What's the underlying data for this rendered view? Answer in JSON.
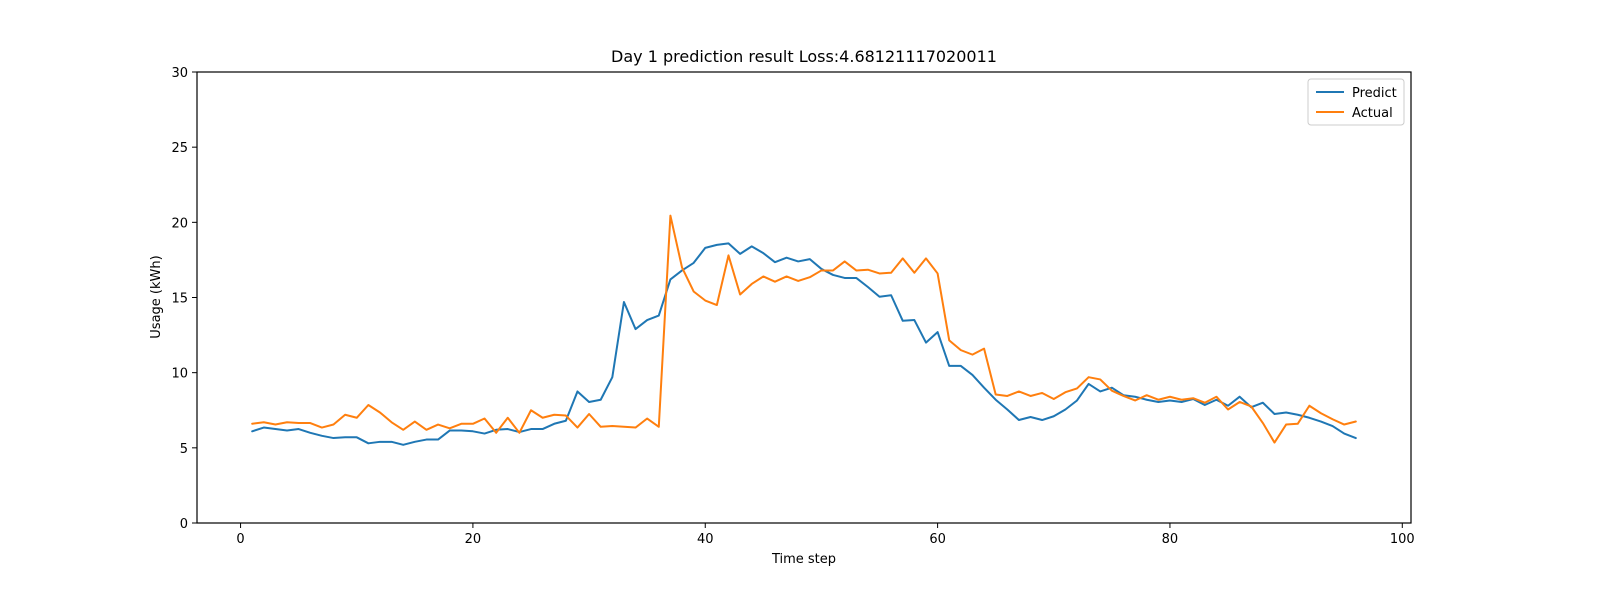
{
  "chart_data": {
    "type": "line",
    "title": "Day 1 prediction result Loss:4.68121117020011",
    "xlabel": "Time step",
    "ylabel": "Usage (kWh)",
    "xlim": [
      -3.75,
      100.75
    ],
    "ylim": [
      0,
      30
    ],
    "xticks": [
      "0",
      "20",
      "40",
      "60",
      "80",
      "100"
    ],
    "yticks": [
      "0",
      "5",
      "10",
      "15",
      "20",
      "25",
      "30"
    ],
    "grid": false,
    "legend_position": "top-right",
    "x": [
      1,
      2,
      3,
      4,
      5,
      6,
      7,
      8,
      9,
      10,
      11,
      12,
      13,
      14,
      15,
      16,
      17,
      18,
      19,
      20,
      21,
      22,
      23,
      24,
      25,
      26,
      27,
      28,
      29,
      30,
      31,
      32,
      33,
      34,
      35,
      36,
      37,
      38,
      39,
      40,
      41,
      42,
      43,
      44,
      45,
      46,
      47,
      48,
      49,
      50,
      51,
      52,
      53,
      54,
      55,
      56,
      57,
      58,
      59,
      60,
      61,
      62,
      63,
      64,
      65,
      66,
      67,
      68,
      69,
      70,
      71,
      72,
      73,
      74,
      75,
      76,
      77,
      78,
      79,
      80,
      81,
      82,
      83,
      84,
      85,
      86,
      87,
      88,
      89,
      90,
      91,
      92,
      93,
      94,
      95,
      96
    ],
    "series": [
      {
        "name": "Predict",
        "color": "#1f77b4",
        "values": [
          6.1,
          6.35,
          6.25,
          6.15,
          6.25,
          6.0,
          5.8,
          5.65,
          5.7,
          5.7,
          5.3,
          5.4,
          5.4,
          5.2,
          5.4,
          5.55,
          5.55,
          6.15,
          6.15,
          6.1,
          5.95,
          6.2,
          6.25,
          6.05,
          6.25,
          6.25,
          6.6,
          6.8,
          8.75,
          8.05,
          8.2,
          9.7,
          14.7,
          12.9,
          13.5,
          13.8,
          16.2,
          16.8,
          17.3,
          18.3,
          18.5,
          18.6,
          17.9,
          18.4,
          17.95,
          17.35,
          17.65,
          17.4,
          17.55,
          16.9,
          16.5,
          16.3,
          16.3,
          15.7,
          15.05,
          15.15,
          13.45,
          13.5,
          12.0,
          12.7,
          10.45,
          10.45,
          9.85,
          9.0,
          8.2,
          7.55,
          6.85,
          7.05,
          6.85,
          7.1,
          7.55,
          8.15,
          9.25,
          8.75,
          9.0,
          8.5,
          8.4,
          8.2,
          8.05,
          8.15,
          8.05,
          8.25,
          7.85,
          8.2,
          7.8,
          8.4,
          7.7,
          8.0,
          7.25,
          7.35,
          7.2,
          7.0,
          6.75,
          6.45,
          5.95,
          5.65
        ]
      },
      {
        "name": "Actual",
        "color": "#ff7f0e",
        "values": [
          6.6,
          6.7,
          6.55,
          6.7,
          6.65,
          6.65,
          6.35,
          6.55,
          7.2,
          7.0,
          7.85,
          7.35,
          6.7,
          6.2,
          6.75,
          6.2,
          6.55,
          6.3,
          6.6,
          6.6,
          6.95,
          6.0,
          7.0,
          6.0,
          7.5,
          7.0,
          7.2,
          7.15,
          6.35,
          7.25,
          6.4,
          6.45,
          6.4,
          6.35,
          6.95,
          6.4,
          20.45,
          17.0,
          15.4,
          14.8,
          14.5,
          17.8,
          15.2,
          15.9,
          16.4,
          16.05,
          16.4,
          16.1,
          16.35,
          16.8,
          16.8,
          17.4,
          16.8,
          16.85,
          16.6,
          16.65,
          17.6,
          16.65,
          17.6,
          16.6,
          12.15,
          11.5,
          11.2,
          11.6,
          8.55,
          8.45,
          8.75,
          8.45,
          8.65,
          8.25,
          8.7,
          8.95,
          9.7,
          9.55,
          8.8,
          8.45,
          8.15,
          8.5,
          8.2,
          8.4,
          8.2,
          8.3,
          8.0,
          8.4,
          7.55,
          8.05,
          7.75,
          6.65,
          5.35,
          6.55,
          6.6,
          7.8,
          7.3,
          6.9,
          6.55,
          6.75
        ]
      }
    ]
  }
}
